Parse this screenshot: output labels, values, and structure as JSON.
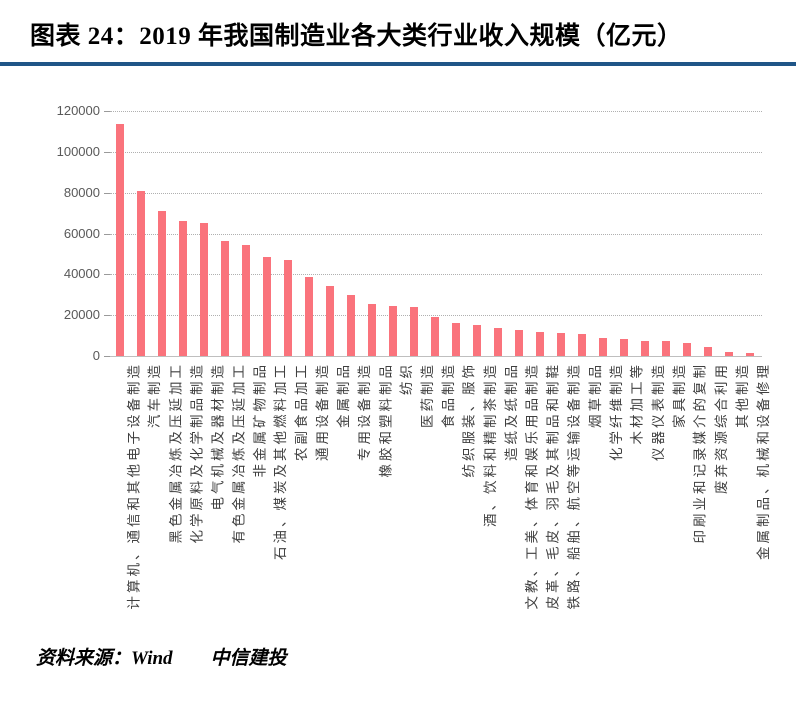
{
  "header": {
    "title": "图表 24：2019 年我国制造业各大类行业收入规模（亿元）",
    "accent_color": "#1F5587"
  },
  "footer": {
    "source": "资料来源：Wind　　中信建投"
  },
  "chart_data": {
    "type": "bar",
    "title": "2019 年我国制造业各大类行业收入规模（亿元）",
    "xlabel": "",
    "ylabel": "",
    "ylim": [
      0,
      120000
    ],
    "yticks": [
      0,
      20000,
      40000,
      60000,
      80000,
      100000,
      120000
    ],
    "grid": true,
    "legend": false,
    "bar_color": "#FA737C",
    "categories": [
      "计算机、通信和其他电子设备制造",
      "汽车制造",
      "黑色金属冶炼及压延加工",
      "化学原料及化学制品制造",
      "电气机械及器材制造",
      "有色金属冶炼及压延加工",
      "非金属矿物制品",
      "石油、煤炭及其他燃料加工",
      "农副食品加工",
      "通用设备制造",
      "金属制品",
      "专用设备制造",
      "橡胶和塑料制品",
      "纺织",
      "医药制造",
      "食品制造",
      "纺织服装、服饰",
      "酒、饮料和精制茶制造",
      "造纸及纸制品",
      "文教、工美、体育和娱乐用品制造",
      "皮革、毛皮、羽毛及其制品和制鞋",
      "铁路、船舶、航空等运输设备制造",
      "烟草制品",
      "化学纤维制造",
      "木材加工等",
      "仪器仪表制造",
      "家具制造",
      "印刷业和记录媒介的复制",
      "废弃资源综合利用",
      "其他制造",
      "金属制品、机械和设备修理"
    ],
    "values": [
      113600,
      80600,
      70800,
      66200,
      65300,
      56400,
      54400,
      48500,
      47000,
      38500,
      34500,
      30000,
      25500,
      24300,
      23900,
      18900,
      16400,
      15300,
      13500,
      12700,
      11700,
      11200,
      10900,
      8600,
      8500,
      7500,
      7400,
      6400,
      4600,
      1900,
      1600
    ]
  }
}
